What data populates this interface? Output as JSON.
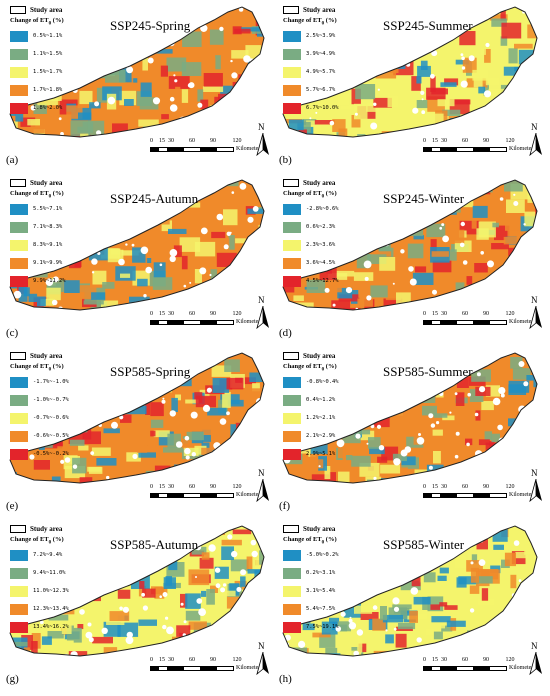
{
  "legend_common": {
    "study_area": "Study area",
    "change_label": "Change of ET",
    "change_sub": "0",
    "change_unit": " (%)",
    "scale_ticks": [
      "0",
      "15",
      "30",
      "60",
      "90",
      "120"
    ],
    "scale_unit": "Kilometers",
    "north": "N"
  },
  "class_colors": [
    "#1f8fc4",
    "#7aac83",
    "#f4f46c",
    "#f08a2a",
    "#e3242b"
  ],
  "panels": [
    {
      "label": "(a)",
      "scenario": "SSP245-Spring",
      "classes": [
        "0.5%~1.1%",
        "1.1%~1.5%",
        "1.5%~1.7%",
        "1.7%~1.8%",
        "1.8%~2.0%"
      ],
      "dominant_class": 3
    },
    {
      "label": "(b)",
      "scenario": "SSP245-Summer",
      "classes": [
        "2.5%~3.9%",
        "3.9%~4.9%",
        "4.9%~5.7%",
        "5.7%~6.7%",
        "6.7%~10.0%"
      ],
      "dominant_class": 2
    },
    {
      "label": "(c)",
      "scenario": "SSP245-Autumn",
      "classes": [
        "5.5%~7.1%",
        "7.1%~8.3%",
        "8.3%~9.1%",
        "9.1%~9.9%",
        "9.9%~11.2%"
      ],
      "dominant_class": 3
    },
    {
      "label": "(d)",
      "scenario": "SSP245-Winter",
      "classes": [
        "-2.8%~0.6%",
        "0.6%~2.3%",
        "2.3%~3.6%",
        "3.6%~4.5%",
        "4.5%~12.7%"
      ],
      "dominant_class": 3
    },
    {
      "label": "(e)",
      "scenario": "SSP585-Spring",
      "classes": [
        "-1.7%~-1.0%",
        "-1.0%~-0.7%",
        "-0.7%~-0.6%",
        "-0.6%~-0.5%",
        "-0.5%~-0.2%"
      ],
      "dominant_class": 3
    },
    {
      "label": "(f)",
      "scenario": "SSP585-Summer",
      "classes": [
        "-0.8%~0.4%",
        "0.4%~1.2%",
        "1.2%~2.1%",
        "2.1%~2.9%",
        "2.9%~5.1%"
      ],
      "dominant_class": 3
    },
    {
      "label": "(g)",
      "scenario": "SSP585-Autumn",
      "classes": [
        "7.2%~9.4%",
        "9.4%~11.0%",
        "11.0%~12.3%",
        "12.3%~13.4%",
        "13.4%~16.2%"
      ],
      "dominant_class": 2
    },
    {
      "label": "(h)",
      "scenario": "SSP585-Winter",
      "classes": [
        "-5.0%~0.2%",
        "0.2%~3.1%",
        "3.1%~5.4%",
        "5.4%~7.5%",
        "7.5%~19.1%"
      ],
      "dominant_class": 2
    }
  ]
}
